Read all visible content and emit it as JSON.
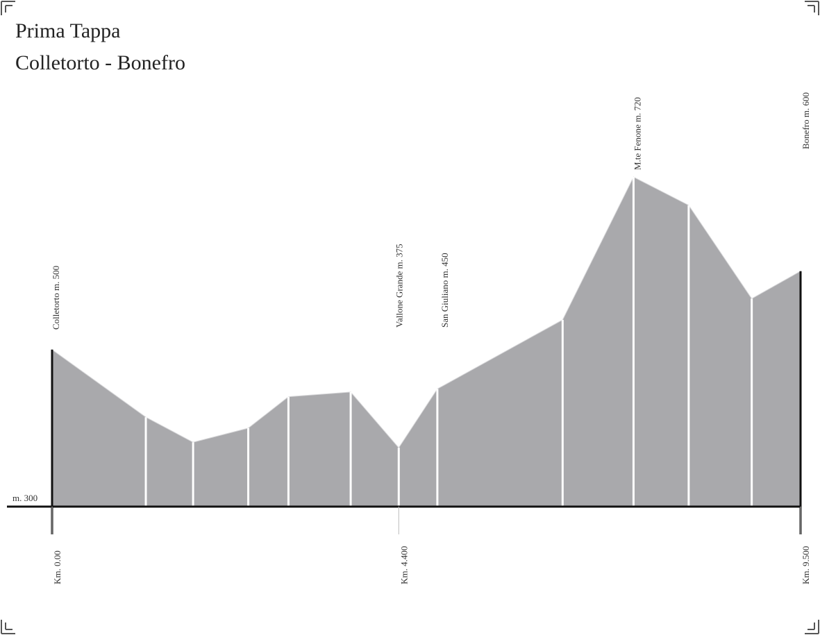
{
  "chart_data": {
    "type": "area",
    "title": "Prima Tappa",
    "subtitle": "Colletorto - Bonefro",
    "x": [
      0,
      1.19,
      1.79,
      2.49,
      3.0,
      3.79,
      4.4,
      4.89,
      6.48,
      7.38,
      8.08,
      8.88,
      9.5
    ],
    "values": [
      500,
      414,
      382,
      400,
      440,
      446,
      375,
      450,
      538,
      720,
      684,
      565,
      600
    ],
    "color": "#a9a9ac",
    "xlim": [
      0,
      9.5
    ],
    "ylim": [
      300,
      720
    ],
    "xticks": [
      {
        "value": 0,
        "label": "Km. 0.00"
      },
      {
        "value": 4.4,
        "label": "Km. 4.400"
      },
      {
        "value": 9.5,
        "label": "Km. 9.500"
      }
    ],
    "yticks": [
      {
        "value": 300,
        "label": "m. 300"
      }
    ],
    "annotations": [
      {
        "text": "Colletorto m. 500",
        "x": 0
      },
      {
        "text": "Vallone Grande m. 375",
        "x": 4.4
      },
      {
        "text": "San Giuliano m. 450",
        "x": 4.89
      },
      {
        "text": "M.te Fenone m. 720",
        "x": 7.38
      },
      {
        "text": "Bonefro m. 600",
        "x": 9.5
      }
    ]
  }
}
